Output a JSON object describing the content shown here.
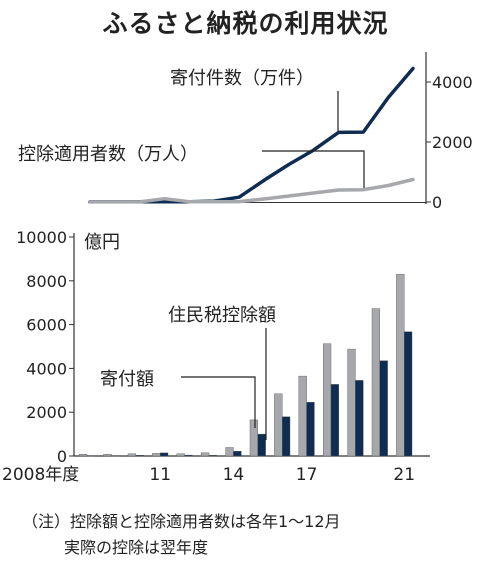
{
  "title": "ふるさと納税の利用状況",
  "chart_data": [
    {
      "type": "line",
      "x": [
        2008,
        2009,
        2010,
        2011,
        2012,
        2013,
        2014,
        2015,
        2016,
        2017,
        2018,
        2019,
        2020,
        2021
      ],
      "xlim": [
        2008,
        2021
      ],
      "ylim": [
        0,
        4800
      ],
      "yticks": [
        "4000",
        "2000",
        "0"
      ],
      "series": [
        {
          "name": "寄付件数（万件）",
          "color": "#0f2d52",
          "values": [
            5,
            5,
            5,
            5,
            5,
            30,
            160,
            720,
            1250,
            1730,
            2320,
            2330,
            3480,
            4450
          ]
        },
        {
          "name": "控除適用者数（万人）",
          "color": "#a6a8ab",
          "values": [
            3,
            3,
            3,
            110,
            10,
            10,
            15,
            100,
            200,
            300,
            400,
            410,
            550,
            750
          ]
        }
      ]
    },
    {
      "type": "bar",
      "categories": [
        "2008",
        "2009",
        "2010",
        "2011",
        "2012",
        "2013",
        "2014",
        "2015",
        "2016",
        "2017",
        "2018",
        "2019",
        "2020",
        "2021"
      ],
      "tick_labels": [
        "2008年度",
        "11",
        "14",
        "17",
        "21"
      ],
      "ylabel": "億円",
      "ylim": [
        0,
        10000
      ],
      "yticks": [
        "10000",
        "8000",
        "6000",
        "4000",
        "2000",
        "0"
      ],
      "series": [
        {
          "name": "寄付額",
          "color": "#a6a8ab",
          "values": [
            80,
            80,
            100,
            120,
            100,
            150,
            390,
            1650,
            2840,
            3650,
            5130,
            4880,
            6730,
            8300
          ]
        },
        {
          "name": "住民税控除額",
          "color": "#0f2d52",
          "values": [
            20,
            20,
            30,
            140,
            40,
            30,
            220,
            1000,
            1790,
            2450,
            3270,
            3450,
            4350,
            5670
          ]
        }
      ]
    }
  ],
  "notes": {
    "line1": "（注）控除額と控除適用者数は各年1～12月",
    "line2": "実際の控除は翌年度"
  }
}
